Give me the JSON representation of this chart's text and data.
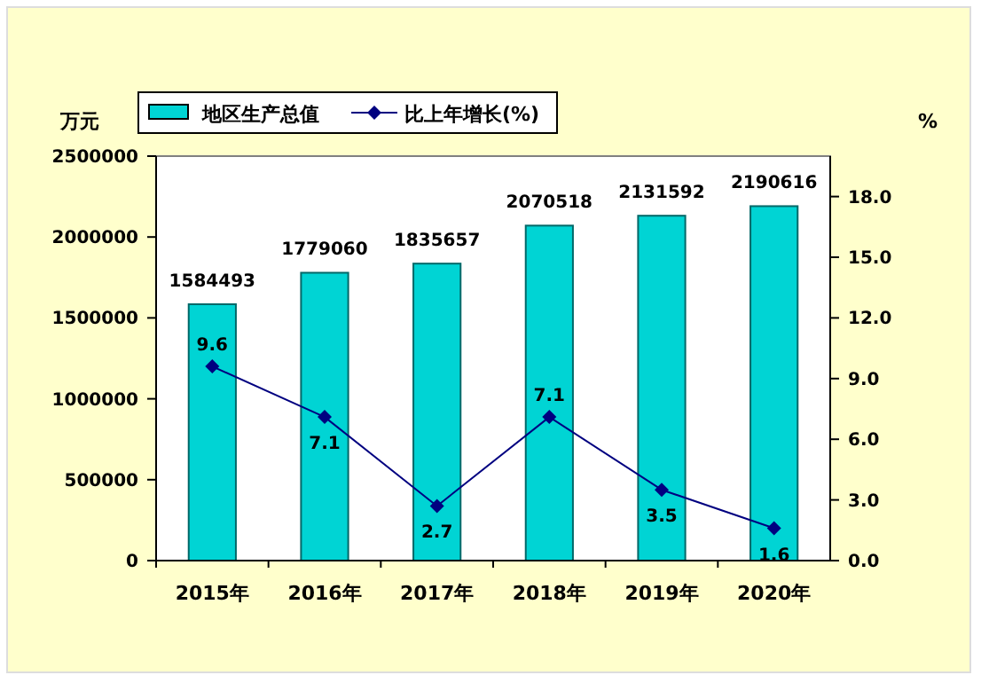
{
  "chart_data": {
    "type": "bar",
    "ylabel": "万元",
    "y2label": "%",
    "categories": [
      "2015年",
      "2016年",
      "2017年",
      "2018年",
      "2019年",
      "2020年"
    ],
    "series": [
      {
        "name": "地区生产总值",
        "color": "#00d4d4",
        "values": [
          1584493,
          1779060,
          1835657,
          2070518,
          2131592,
          2190616
        ]
      },
      {
        "name": "比上年增长(%)",
        "type": "line",
        "axis": "y2",
        "color": "#000080",
        "marker": "diamond",
        "values": [
          9.6,
          7.1,
          2.7,
          7.1,
          3.5,
          1.6
        ]
      }
    ],
    "ylim": [
      0,
      2500000
    ],
    "yticks": [
      0,
      500000,
      1000000,
      1500000,
      2000000,
      2500000
    ],
    "y2lim": [
      0,
      20
    ],
    "y2ticks": [
      {
        "value": 0,
        "label": "0.0"
      },
      {
        "value": 3,
        "label": "3.0"
      },
      {
        "value": 6,
        "label": "6.0"
      },
      {
        "value": 9,
        "label": "9.0"
      },
      {
        "value": 12,
        "label": "12.0"
      },
      {
        "value": 15,
        "label": "15.0"
      },
      {
        "value": 18,
        "label": "18.0"
      }
    ],
    "data_labels": true,
    "legend": "top",
    "grid": false
  }
}
